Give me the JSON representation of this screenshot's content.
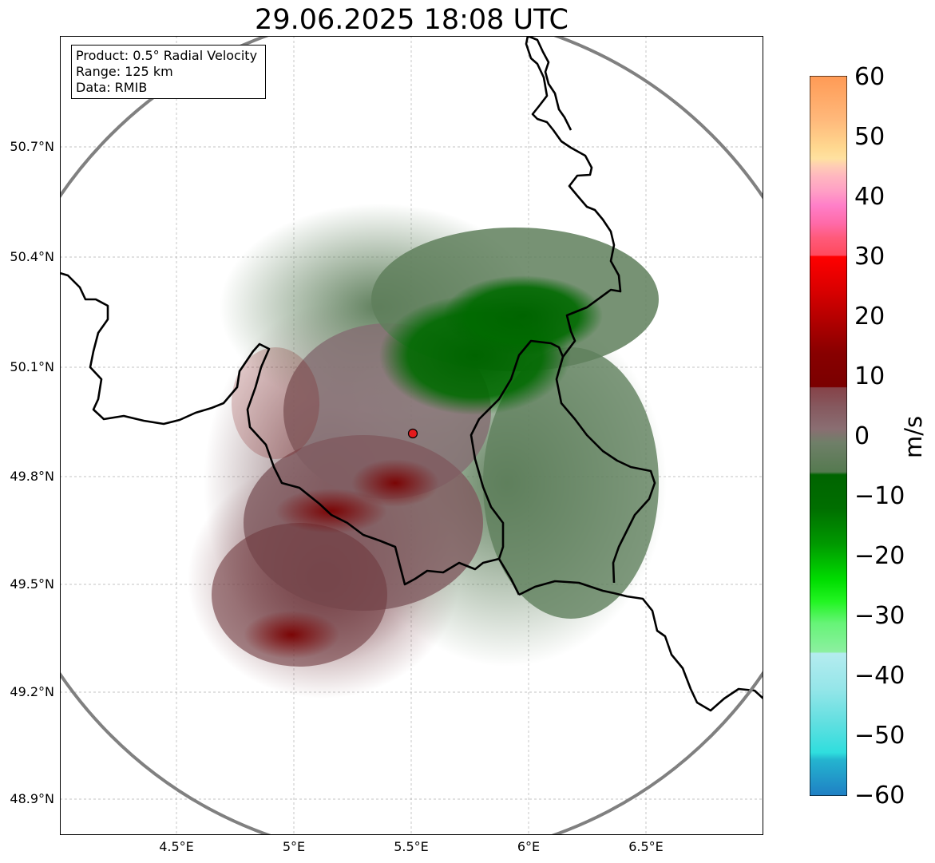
{
  "title": "29.06.2025 18:08 UTC",
  "info": {
    "product": "Product: 0.5° Radial Velocity",
    "range": "Range: 125 km",
    "data": "Data: RMIB"
  },
  "axes": {
    "lat_labels": [
      "50.7°N",
      "50.4°N",
      "50.1°N",
      "49.8°N",
      "49.5°N",
      "49.2°N",
      "48.9°N"
    ],
    "lon_labels": [
      "4.5°E",
      "5°E",
      "5.5°E",
      "6°E",
      "6.5°E"
    ],
    "lon_range": [
      4.0,
      7.0
    ],
    "lat_range": [
      48.8,
      51.0
    ]
  },
  "radar": {
    "lat": 49.91,
    "lon": 5.51,
    "range_km": 125,
    "site_marker_color": "#e41a1c"
  },
  "colorbar": {
    "label": "m/s",
    "min": -60,
    "max": 60,
    "ticks": [
      "60",
      "50",
      "40",
      "30",
      "20",
      "10",
      "0",
      "−10",
      "−20",
      "−30",
      "−40",
      "−50",
      "−60"
    ],
    "colors": {
      "strong_inbound": "#1f7fc4",
      "cyan": "#2fdede",
      "light_cyan": "#b4ecef",
      "light_green": "#8cf0a0",
      "green": "#00dd00",
      "dark_green": "#006400",
      "near_zero_green": "#5f7f5c",
      "near_zero_mauve": "#8a6e72",
      "dark_red": "#7a0000",
      "red": "#ff0000",
      "pink": "#ff7fc8",
      "light_pink": "#ffb6bf",
      "peach": "#ffe1a0",
      "orange": "#ff9a55"
    }
  }
}
